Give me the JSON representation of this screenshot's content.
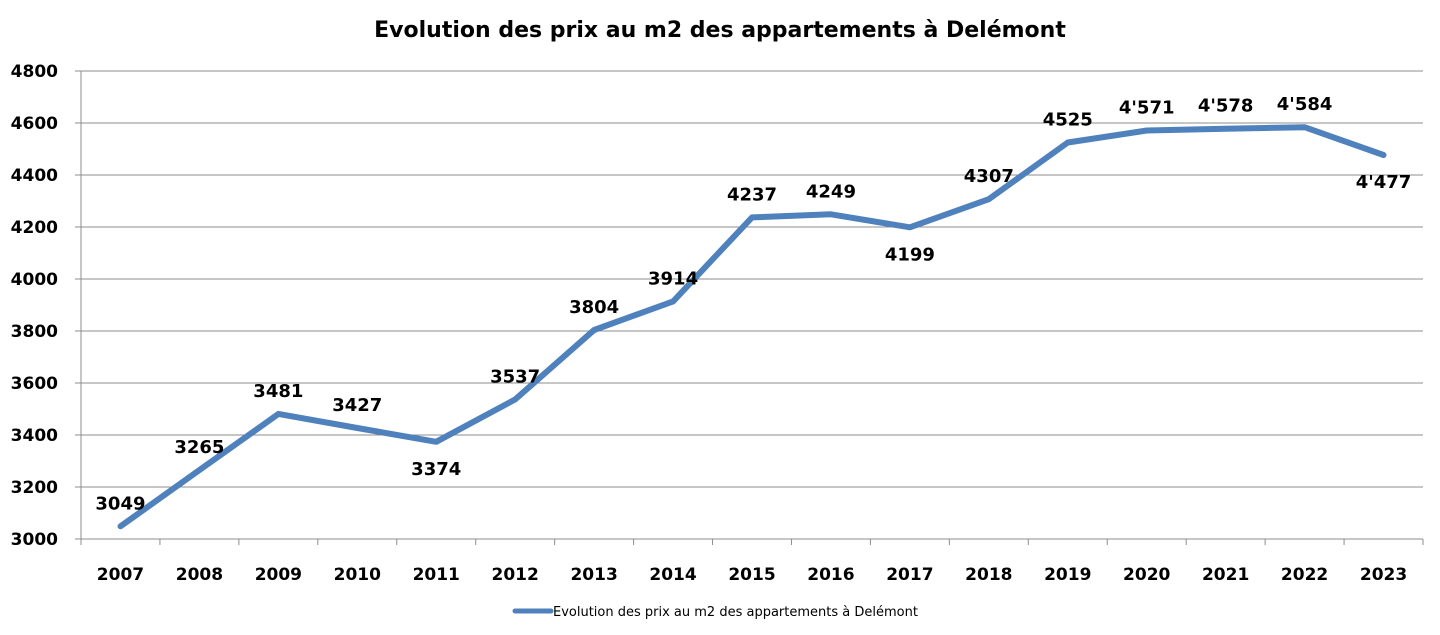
{
  "chart_data": {
    "type": "line",
    "title": "Evolution des prix au m2 des appartements à Delémont",
    "xlabel": "",
    "ylabel": "",
    "categories": [
      "2007",
      "2008",
      "2009",
      "2010",
      "2011",
      "2012",
      "2013",
      "2014",
      "2015",
      "2016",
      "2017",
      "2018",
      "2019",
      "2020",
      "2021",
      "2022",
      "2023"
    ],
    "series": [
      {
        "name": "Evolution des prix au m2 des appartements à Delémont",
        "color": "#4f81bd",
        "values": [
          3049,
          3265,
          3481,
          3427,
          3374,
          3537,
          3804,
          3914,
          4237,
          4249,
          4199,
          4307,
          4525,
          4571,
          4578,
          4584,
          4477
        ],
        "data_labels": [
          "3049",
          "3265",
          "3481",
          "3427",
          "3374",
          "3537",
          "3804",
          "3914",
          "4237",
          "4249",
          "4199",
          "4307",
          "4525",
          "4'571",
          "4'578",
          "4'584",
          "4'477"
        ]
      }
    ],
    "ylim": [
      3000,
      4800
    ],
    "yticks": [
      "3000",
      "3200",
      "3400",
      "3600",
      "3800",
      "4000",
      "4200",
      "4400",
      "4600",
      "4800"
    ],
    "grid": true,
    "legend": "bottom"
  }
}
